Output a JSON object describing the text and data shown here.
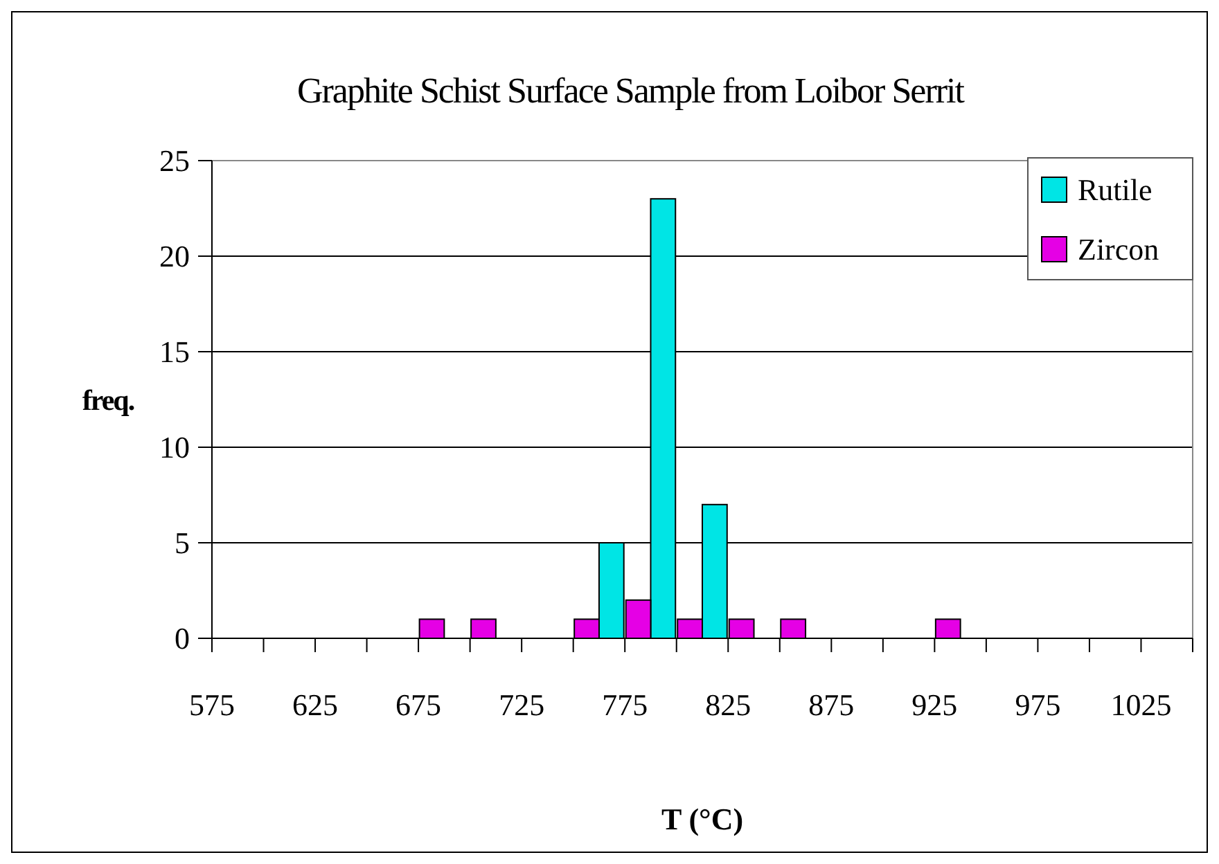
{
  "chart_data": {
    "type": "histogram",
    "title": "Graphite Schist Surface Sample from Loibor Serrit",
    "xlabel": "T (°C)",
    "ylabel": "freq.",
    "bins": [
      575,
      600,
      625,
      650,
      675,
      700,
      725,
      750,
      775,
      800,
      825,
      850,
      875,
      900,
      925,
      950,
      975,
      1000,
      1025,
      1050
    ],
    "series": [
      {
        "name": "Rutile",
        "color": "#00e5e5",
        "values": [
          0,
          0,
          0,
          0,
          0,
          0,
          0,
          5,
          23,
          7,
          0,
          0,
          0,
          0,
          0,
          0,
          0,
          0,
          0
        ]
      },
      {
        "name": "Zircon",
        "color": "#e500e5",
        "values": [
          0,
          0,
          0,
          0,
          1,
          1,
          0,
          1,
          2,
          1,
          1,
          1,
          0,
          0,
          1,
          0,
          0,
          0,
          0
        ]
      }
    ],
    "xlim": [
      575,
      1050
    ],
    "xticks": [
      575,
      {
        "value": 600,
        "label": null
      },
      625,
      {
        "value": 650,
        "label": null
      },
      675,
      {
        "value": 700,
        "label": null
      },
      725,
      {
        "value": 750,
        "label": null
      },
      775,
      {
        "value": 800,
        "label": null
      },
      825,
      {
        "value": 850,
        "label": null
      },
      875,
      {
        "value": 900,
        "label": null
      },
      925,
      {
        "value": 950,
        "label": null
      },
      975,
      {
        "value": 1000,
        "label": null
      },
      1025,
      {
        "value": 1050,
        "label": null
      }
    ],
    "ylim": [
      0,
      25
    ],
    "yticks": [
      0,
      5,
      10,
      15,
      20,
      25
    ],
    "grid": "y",
    "legend": "top right"
  }
}
